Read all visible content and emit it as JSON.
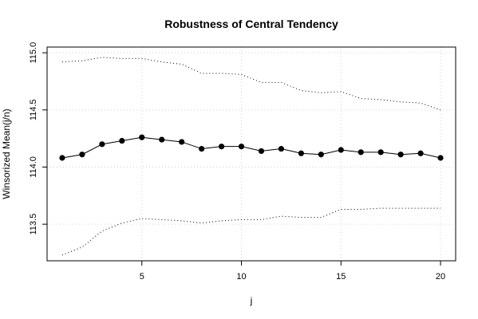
{
  "chart_data": {
    "type": "line",
    "title": "Robustness of Central Tendency",
    "xlabel": "j",
    "ylabel": "Winsorized Mean(j/n)",
    "xlim": [
      0.24,
      20.76
    ],
    "ylim": [
      113.18,
      115.05
    ],
    "grid": true,
    "xticks": [
      5,
      10,
      15,
      20
    ],
    "yticks": [
      113.5,
      114.0,
      114.5,
      115.0
    ],
    "xtick_labels": [
      "5",
      "10",
      "15",
      "20"
    ],
    "ytick_labels": [
      "113.5",
      "114.0",
      "114.5",
      "115.0"
    ],
    "x": [
      1,
      2,
      3,
      4,
      5,
      6,
      7,
      8,
      9,
      10,
      11,
      12,
      13,
      14,
      15,
      16,
      17,
      18,
      19,
      20
    ],
    "series": [
      {
        "style": "line-with-points",
        "values": [
          114.08,
          114.11,
          114.2,
          114.23,
          114.26,
          114.24,
          114.22,
          114.16,
          114.18,
          114.18,
          114.14,
          114.16,
          114.12,
          114.11,
          114.15,
          114.13,
          114.13,
          114.11,
          114.12,
          114.08
        ]
      },
      {
        "style": "dotted",
        "values": [
          114.92,
          114.93,
          114.96,
          114.95,
          114.95,
          114.92,
          114.9,
          114.82,
          114.82,
          114.81,
          114.74,
          114.74,
          114.67,
          114.65,
          114.66,
          114.6,
          114.59,
          114.57,
          114.56,
          114.5
        ]
      },
      {
        "style": "dotted",
        "values": [
          113.23,
          113.3,
          113.44,
          113.51,
          113.55,
          113.54,
          113.53,
          113.51,
          113.53,
          113.54,
          113.54,
          113.57,
          113.56,
          113.56,
          113.63,
          113.63,
          113.64,
          113.64,
          113.64,
          113.64
        ]
      }
    ]
  }
}
